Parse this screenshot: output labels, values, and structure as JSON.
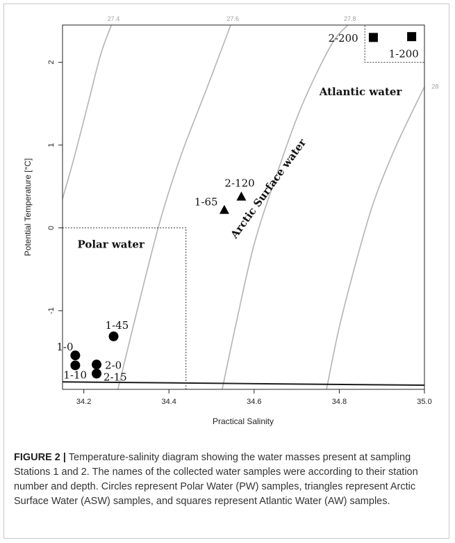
{
  "chart_data": {
    "type": "scatter",
    "xlabel": "Practical Salinity",
    "ylabel": "Potential Temperature [°C]",
    "xlim": [
      34.15,
      35.0
    ],
    "ylim": [
      -1.95,
      2.45
    ],
    "x_ticks": [
      34.2,
      34.4,
      34.6,
      34.8,
      35.0
    ],
    "x_tick_labels": [
      "34.2",
      "34.4",
      "34.6",
      "34.8",
      "35.0"
    ],
    "y_ticks": [
      2,
      1,
      0,
      -1
    ],
    "y_tick_labels": [
      "2",
      "1",
      "0",
      "-1"
    ],
    "grid": false,
    "isopycnals": [
      {
        "label": "27.4",
        "points": [
          [
            34.15,
            0.35
          ],
          [
            34.18,
            0.9
          ],
          [
            34.21,
            1.5
          ],
          [
            34.24,
            2.1
          ],
          [
            34.265,
            2.45
          ]
        ],
        "label_at": [
          34.27,
          2.5
        ]
      },
      {
        "label": "27.6",
        "points": [
          [
            34.28,
            -1.95
          ],
          [
            34.33,
            -0.9
          ],
          [
            34.38,
            0.1
          ],
          [
            34.43,
            0.9
          ],
          [
            34.49,
            1.7
          ],
          [
            34.545,
            2.45
          ]
        ],
        "label_at": [
          34.55,
          2.5
        ]
      },
      {
        "label": "27.8",
        "points": [
          [
            34.525,
            -1.95
          ],
          [
            34.56,
            -1.1
          ],
          [
            34.6,
            -0.2
          ],
          [
            34.65,
            0.6
          ],
          [
            34.71,
            1.45
          ],
          [
            34.78,
            2.2
          ],
          [
            34.82,
            2.45
          ]
        ],
        "label_at": [
          34.825,
          2.5
        ]
      },
      {
        "label": "28",
        "points": [
          [
            34.77,
            -1.95
          ],
          [
            34.8,
            -1.2
          ],
          [
            34.84,
            -0.4
          ],
          [
            34.88,
            0.3
          ],
          [
            34.93,
            0.95
          ],
          [
            34.99,
            1.6
          ],
          [
            35.0,
            1.7
          ]
        ],
        "label_at": [
          35.025,
          1.68
        ]
      }
    ],
    "freezing_line": {
      "points": [
        [
          34.15,
          -1.86
        ],
        [
          35.0,
          -1.9
        ]
      ]
    },
    "series": [
      {
        "name": "Polar Water (PW)",
        "marker": "circle",
        "points": [
          {
            "x": 34.18,
            "y": -1.54,
            "label": "1-0"
          },
          {
            "x": 34.18,
            "y": -1.66,
            "label": "1-10"
          },
          {
            "x": 34.27,
            "y": -1.31,
            "label": "1-45"
          },
          {
            "x": 34.23,
            "y": -1.65,
            "label": "2-0"
          },
          {
            "x": 34.23,
            "y": -1.76,
            "label": "2-15"
          }
        ]
      },
      {
        "name": "Arctic Surface Water (ASW)",
        "marker": "triangle",
        "points": [
          {
            "x": 34.53,
            "y": 0.22,
            "label": "1-65"
          },
          {
            "x": 34.57,
            "y": 0.38,
            "label": "2-120"
          }
        ]
      },
      {
        "name": "Atlantic Water (AW)",
        "marker": "square",
        "points": [
          {
            "x": 34.97,
            "y": 2.31,
            "label": "1-200"
          },
          {
            "x": 34.88,
            "y": 2.3,
            "label": "2-200"
          }
        ]
      }
    ],
    "regions": [
      {
        "name": "Polar water",
        "box": {
          "x0": 34.15,
          "x1": 34.44,
          "y0": -1.95,
          "y1": 0.0
        }
      },
      {
        "name": "Atlantic water",
        "box": {
          "x0": 34.86,
          "x1": 35.0,
          "y0": 2.0,
          "y1": 2.45
        }
      },
      {
        "name": "Arctic Surface water",
        "box": null
      }
    ]
  },
  "caption": {
    "figure_number": "FIGURE 2 |",
    "text": "Temperature-salinity diagram showing the water masses present at sampling Stations 1 and 2. The names of the collected water samples were according to their station number and depth. Circles represent Polar Water (PW) samples, triangles represent Arctic Surface Water (ASW) samples, and squares represent Atlantic Water (AW) samples."
  }
}
